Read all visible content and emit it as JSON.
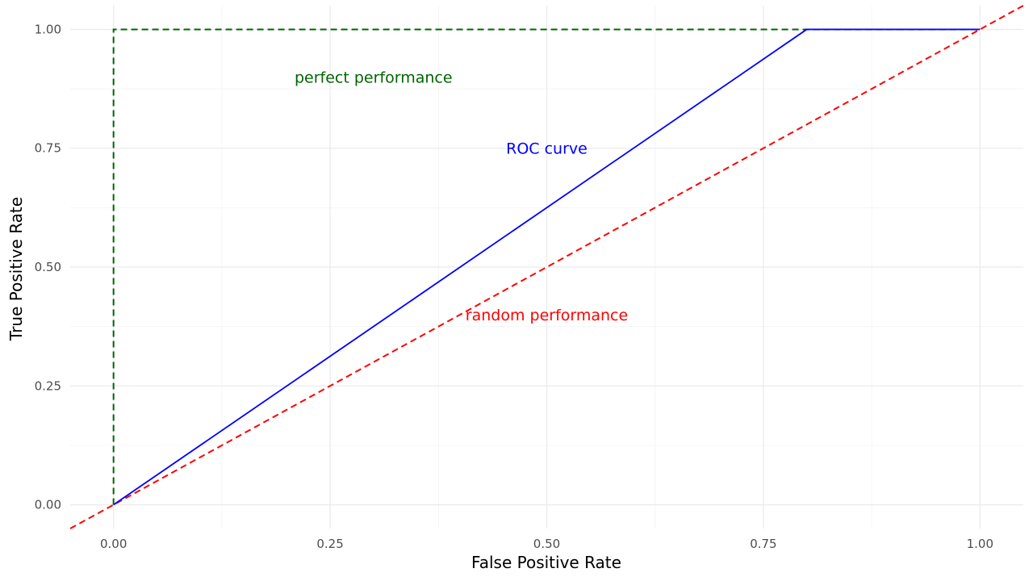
{
  "chart_data": {
    "type": "line",
    "xlabel": "False Positive Rate",
    "ylabel": "True Positive Rate",
    "xlim": [
      -0.05,
      1.05
    ],
    "ylim": [
      -0.05,
      1.05
    ],
    "x_ticks": [
      0,
      0.25,
      0.5,
      0.75,
      1
    ],
    "x_tick_labels": [
      "0.00",
      "0.25",
      "0.50",
      "0.75",
      "1.00"
    ],
    "y_ticks": [
      0,
      0.25,
      0.5,
      0.75,
      1
    ],
    "y_tick_labels": [
      "0.00",
      "0.25",
      "0.50",
      "0.75",
      "1.00"
    ],
    "grid": true,
    "series": [
      {
        "key": "perfect",
        "color": "#006400",
        "dash": "dashed",
        "points": [
          [
            0,
            0
          ],
          [
            0,
            1
          ],
          [
            1,
            1
          ]
        ]
      },
      {
        "key": "random",
        "color": "#ff0000",
        "dash": "dashed",
        "points": [
          [
            -0.05,
            -0.05
          ],
          [
            1.05,
            1.05
          ]
        ]
      },
      {
        "key": "roc",
        "color": "#0000ff",
        "dash": "solid",
        "points": [
          [
            0,
            0
          ],
          [
            0.8,
            1
          ],
          [
            1,
            1
          ]
        ]
      }
    ],
    "annotations": [
      {
        "key": "perfect",
        "text": "perfect performance",
        "x": 0.3,
        "y": 0.9,
        "color": "#006400"
      },
      {
        "key": "roc",
        "text": "ROC curve",
        "x": 0.5,
        "y": 0.75,
        "color": "#0000ff"
      },
      {
        "key": "random",
        "text": "random performance",
        "x": 0.5,
        "y": 0.4,
        "color": "#ff0000"
      }
    ]
  }
}
